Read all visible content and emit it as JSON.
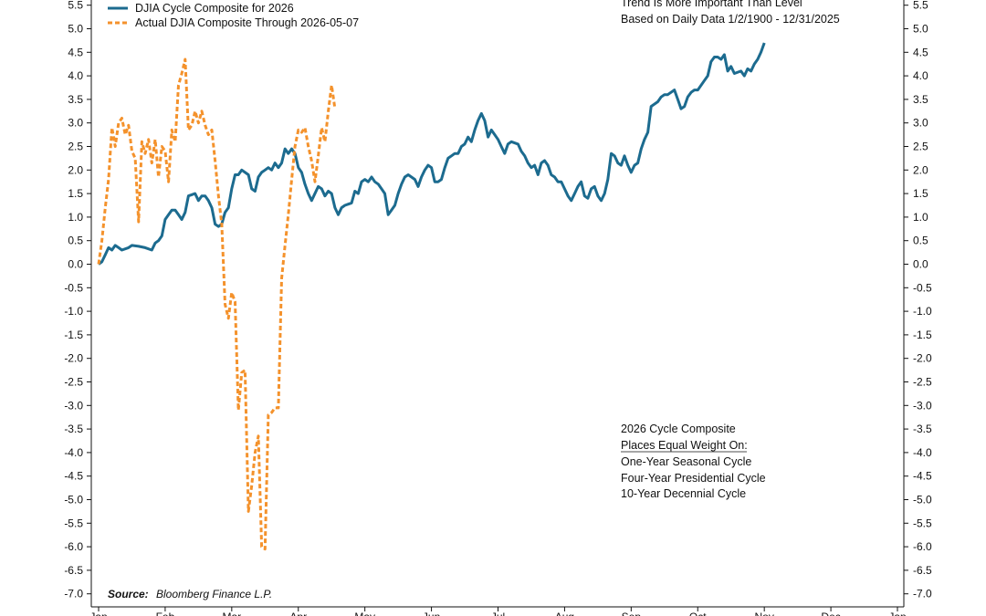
{
  "chart_data": {
    "type": "line",
    "title": "",
    "xlabel": "",
    "ylabel": "",
    "ylim": [
      -7.0,
      5.5
    ],
    "y_ticks": [
      "5.5",
      "5.0",
      "4.5",
      "4.0",
      "3.5",
      "3.0",
      "2.5",
      "2.0",
      "1.5",
      "1.0",
      "0.5",
      "0.0",
      "-0.5",
      "-1.0",
      "-1.5",
      "-2.0",
      "-2.5",
      "-3.0",
      "-3.5",
      "-4.0",
      "-4.5",
      "-5.0",
      "-5.5",
      "-6.0",
      "-6.5",
      "-7.0"
    ],
    "x_months": [
      "Jan",
      "Feb",
      "Mar",
      "Apr",
      "May",
      "Jun",
      "Jul",
      "Aug",
      "Sep",
      "Oct",
      "Nov",
      "Dec",
      "Jan"
    ],
    "x_unit": "months since Jan 1",
    "grid": false,
    "legend_position": "top-left",
    "series": [
      {
        "name": "DJIA Cycle Composite for 2026",
        "color": "#1c6b8f",
        "style": "solid",
        "points": [
          [
            0.0,
            0.0
          ],
          [
            0.05,
            0.05
          ],
          [
            0.1,
            0.2
          ],
          [
            0.15,
            0.35
          ],
          [
            0.2,
            0.3
          ],
          [
            0.25,
            0.4
          ],
          [
            0.3,
            0.35
          ],
          [
            0.35,
            0.3
          ],
          [
            0.45,
            0.35
          ],
          [
            0.5,
            0.4
          ],
          [
            0.6,
            0.38
          ],
          [
            0.7,
            0.35
          ],
          [
            0.8,
            0.3
          ],
          [
            0.85,
            0.45
          ],
          [
            0.9,
            0.5
          ],
          [
            0.95,
            0.6
          ],
          [
            1.0,
            0.95
          ],
          [
            1.05,
            1.05
          ],
          [
            1.1,
            1.15
          ],
          [
            1.15,
            1.15
          ],
          [
            1.2,
            1.05
          ],
          [
            1.25,
            0.95
          ],
          [
            1.3,
            1.1
          ],
          [
            1.35,
            1.45
          ],
          [
            1.45,
            1.5
          ],
          [
            1.5,
            1.35
          ],
          [
            1.55,
            1.45
          ],
          [
            1.6,
            1.45
          ],
          [
            1.65,
            1.35
          ],
          [
            1.7,
            1.2
          ],
          [
            1.75,
            0.85
          ],
          [
            1.8,
            0.8
          ],
          [
            1.85,
            0.85
          ],
          [
            1.9,
            1.1
          ],
          [
            1.95,
            1.2
          ],
          [
            2.0,
            1.6
          ],
          [
            2.05,
            1.9
          ],
          [
            2.1,
            1.9
          ],
          [
            2.15,
            2.0
          ],
          [
            2.2,
            1.95
          ],
          [
            2.25,
            1.9
          ],
          [
            2.3,
            1.6
          ],
          [
            2.35,
            1.55
          ],
          [
            2.4,
            1.85
          ],
          [
            2.45,
            1.95
          ],
          [
            2.5,
            2.0
          ],
          [
            2.55,
            2.05
          ],
          [
            2.6,
            2.0
          ],
          [
            2.65,
            2.15
          ],
          [
            2.7,
            2.05
          ],
          [
            2.75,
            2.15
          ],
          [
            2.8,
            2.45
          ],
          [
            2.85,
            2.35
          ],
          [
            2.9,
            2.45
          ],
          [
            2.95,
            2.35
          ],
          [
            3.0,
            2.05
          ],
          [
            3.05,
            1.95
          ],
          [
            3.1,
            1.7
          ],
          [
            3.15,
            1.5
          ],
          [
            3.2,
            1.35
          ],
          [
            3.3,
            1.65
          ],
          [
            3.35,
            1.6
          ],
          [
            3.4,
            1.45
          ],
          [
            3.45,
            1.55
          ],
          [
            3.5,
            1.5
          ],
          [
            3.55,
            1.2
          ],
          [
            3.6,
            1.05
          ],
          [
            3.65,
            1.2
          ],
          [
            3.7,
            1.25
          ],
          [
            3.8,
            1.3
          ],
          [
            3.85,
            1.55
          ],
          [
            3.9,
            1.5
          ],
          [
            3.95,
            1.75
          ],
          [
            4.0,
            1.8
          ],
          [
            4.05,
            1.75
          ],
          [
            4.1,
            1.85
          ],
          [
            4.15,
            1.75
          ],
          [
            4.2,
            1.7
          ],
          [
            4.25,
            1.6
          ],
          [
            4.3,
            1.5
          ],
          [
            4.35,
            1.05
          ],
          [
            4.4,
            1.15
          ],
          [
            4.45,
            1.25
          ],
          [
            4.5,
            1.5
          ],
          [
            4.55,
            1.7
          ],
          [
            4.6,
            1.85
          ],
          [
            4.65,
            1.9
          ],
          [
            4.7,
            1.85
          ],
          [
            4.75,
            1.8
          ],
          [
            4.8,
            1.65
          ],
          [
            4.85,
            1.85
          ],
          [
            4.9,
            2.0
          ],
          [
            4.95,
            2.1
          ],
          [
            5.0,
            2.05
          ],
          [
            5.05,
            1.75
          ],
          [
            5.1,
            1.75
          ],
          [
            5.15,
            1.8
          ],
          [
            5.2,
            2.05
          ],
          [
            5.25,
            2.25
          ],
          [
            5.3,
            2.3
          ],
          [
            5.35,
            2.35
          ],
          [
            5.4,
            2.35
          ],
          [
            5.45,
            2.5
          ],
          [
            5.5,
            2.55
          ],
          [
            5.55,
            2.7
          ],
          [
            5.6,
            2.6
          ],
          [
            5.65,
            2.85
          ],
          [
            5.7,
            3.05
          ],
          [
            5.75,
            3.2
          ],
          [
            5.8,
            3.05
          ],
          [
            5.85,
            2.7
          ],
          [
            5.9,
            2.85
          ],
          [
            5.95,
            2.75
          ],
          [
            6.0,
            2.65
          ],
          [
            6.05,
            2.5
          ],
          [
            6.1,
            2.35
          ],
          [
            6.15,
            2.55
          ],
          [
            6.2,
            2.6
          ],
          [
            6.3,
            2.55
          ],
          [
            6.35,
            2.4
          ],
          [
            6.4,
            2.3
          ],
          [
            6.45,
            2.15
          ],
          [
            6.5,
            2.05
          ],
          [
            6.55,
            2.1
          ],
          [
            6.6,
            1.9
          ],
          [
            6.65,
            2.15
          ],
          [
            6.7,
            2.2
          ],
          [
            6.75,
            2.1
          ],
          [
            6.8,
            1.9
          ],
          [
            6.85,
            1.85
          ],
          [
            6.9,
            1.75
          ],
          [
            6.95,
            1.75
          ],
          [
            7.0,
            1.6
          ],
          [
            7.05,
            1.45
          ],
          [
            7.1,
            1.35
          ],
          [
            7.15,
            1.5
          ],
          [
            7.2,
            1.65
          ],
          [
            7.25,
            1.75
          ],
          [
            7.3,
            1.45
          ],
          [
            7.35,
            1.4
          ],
          [
            7.4,
            1.6
          ],
          [
            7.45,
            1.65
          ],
          [
            7.5,
            1.45
          ],
          [
            7.55,
            1.35
          ],
          [
            7.6,
            1.5
          ],
          [
            7.65,
            1.8
          ],
          [
            7.7,
            2.35
          ],
          [
            7.75,
            2.3
          ],
          [
            7.8,
            2.15
          ],
          [
            7.85,
            2.1
          ],
          [
            7.9,
            2.3
          ],
          [
            7.95,
            2.1
          ],
          [
            8.0,
            1.95
          ],
          [
            8.05,
            2.1
          ],
          [
            8.1,
            2.15
          ],
          [
            8.15,
            2.45
          ],
          [
            8.2,
            2.65
          ],
          [
            8.25,
            2.8
          ],
          [
            8.3,
            3.35
          ],
          [
            8.4,
            3.45
          ],
          [
            8.45,
            3.55
          ],
          [
            8.5,
            3.6
          ],
          [
            8.55,
            3.6
          ],
          [
            8.65,
            3.7
          ],
          [
            8.7,
            3.5
          ],
          [
            8.75,
            3.3
          ],
          [
            8.8,
            3.35
          ],
          [
            8.85,
            3.55
          ],
          [
            8.9,
            3.65
          ],
          [
            8.95,
            3.7
          ],
          [
            9.0,
            3.7
          ],
          [
            9.1,
            3.9
          ],
          [
            9.15,
            4.0
          ],
          [
            9.2,
            4.3
          ],
          [
            9.25,
            4.4
          ],
          [
            9.3,
            4.4
          ],
          [
            9.35,
            4.35
          ],
          [
            9.4,
            4.45
          ],
          [
            9.45,
            4.1
          ],
          [
            9.5,
            4.2
          ],
          [
            9.55,
            4.05
          ],
          [
            9.65,
            4.1
          ],
          [
            9.7,
            4.0
          ],
          [
            9.75,
            4.15
          ],
          [
            9.8,
            4.1
          ],
          [
            9.85,
            4.25
          ],
          [
            9.9,
            4.35
          ],
          [
            9.95,
            4.5
          ],
          [
            10.0,
            4.7
          ]
        ]
      },
      {
        "name": "Actual DJIA Composite Through 2026-05-07",
        "color": "#f4922c",
        "style": "dashed",
        "points": [
          [
            0.0,
            0.0
          ],
          [
            0.05,
            0.5
          ],
          [
            0.1,
            1.2
          ],
          [
            0.15,
            1.8
          ],
          [
            0.2,
            2.9
          ],
          [
            0.25,
            2.5
          ],
          [
            0.3,
            3.0
          ],
          [
            0.35,
            3.1
          ],
          [
            0.4,
            2.75
          ],
          [
            0.45,
            2.95
          ],
          [
            0.5,
            2.4
          ],
          [
            0.55,
            2.25
          ],
          [
            0.6,
            0.9
          ],
          [
            0.65,
            2.6
          ],
          [
            0.7,
            2.35
          ],
          [
            0.75,
            2.65
          ],
          [
            0.8,
            2.15
          ],
          [
            0.85,
            2.65
          ],
          [
            0.9,
            1.85
          ],
          [
            0.95,
            2.5
          ],
          [
            1.0,
            2.4
          ],
          [
            1.05,
            1.75
          ],
          [
            1.1,
            2.85
          ],
          [
            1.15,
            2.6
          ],
          [
            1.2,
            3.8
          ],
          [
            1.25,
            4.05
          ],
          [
            1.3,
            4.35
          ],
          [
            1.35,
            2.85
          ],
          [
            1.4,
            2.95
          ],
          [
            1.45,
            3.25
          ],
          [
            1.5,
            3.0
          ],
          [
            1.55,
            3.25
          ],
          [
            1.6,
            2.95
          ],
          [
            1.65,
            2.75
          ],
          [
            1.7,
            2.85
          ],
          [
            1.75,
            2.2
          ],
          [
            1.8,
            1.45
          ],
          [
            1.85,
            0.85
          ],
          [
            1.9,
            -0.85
          ],
          [
            1.95,
            -1.15
          ],
          [
            2.0,
            -0.6
          ],
          [
            2.05,
            -0.8
          ],
          [
            2.1,
            -3.1
          ],
          [
            2.15,
            -2.3
          ],
          [
            2.2,
            -2.25
          ],
          [
            2.25,
            -5.25
          ],
          [
            2.3,
            -4.7
          ],
          [
            2.35,
            -4.0
          ],
          [
            2.4,
            -3.65
          ],
          [
            2.45,
            -6.0
          ],
          [
            2.5,
            -6.05
          ],
          [
            2.55,
            -3.2
          ],
          [
            2.6,
            -3.15
          ],
          [
            2.65,
            -3.05
          ],
          [
            2.7,
            -3.05
          ],
          [
            2.75,
            -0.3
          ],
          [
            2.8,
            0.4
          ],
          [
            2.85,
            1.05
          ],
          [
            2.9,
            1.8
          ],
          [
            2.95,
            2.5
          ],
          [
            3.0,
            2.85
          ],
          [
            3.05,
            2.8
          ],
          [
            3.1,
            2.9
          ],
          [
            3.15,
            2.5
          ],
          [
            3.2,
            2.2
          ],
          [
            3.25,
            1.75
          ],
          [
            3.3,
            2.3
          ],
          [
            3.35,
            2.9
          ],
          [
            3.4,
            2.6
          ],
          [
            3.45,
            3.25
          ],
          [
            3.5,
            3.8
          ],
          [
            3.55,
            3.3
          ]
        ]
      }
    ],
    "annotations_top_right": [
      "Trend Is More Important Than Level",
      "Based on Daily Data 1/2/1900 - 12/31/2025"
    ],
    "note_box": [
      "2026 Cycle Composite",
      "Places Equal Weight On:",
      "One-Year Seasonal Cycle",
      "Four-Year Presidential Cycle",
      "10-Year Decennial Cycle"
    ]
  },
  "source": {
    "label": "Source:",
    "text": "Bloomberg Finance L.P."
  }
}
